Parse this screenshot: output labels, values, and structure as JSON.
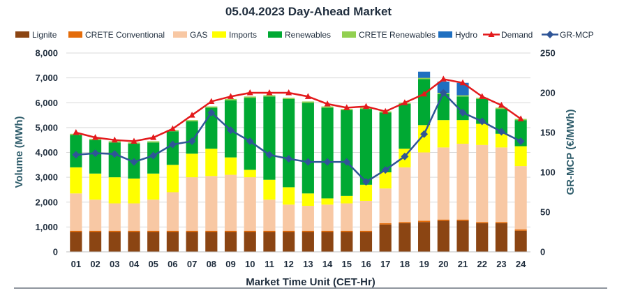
{
  "chart_data": {
    "type": "bar",
    "stacked": true,
    "title": "05.04.2023  Day-Ahead Market",
    "xlabel": "Market Time Unit (CET-Hr)",
    "ylabel": "Volume (MWh)",
    "y2label": "GR-MCP (€/MWh)",
    "ylim": [
      0,
      8000
    ],
    "y2lim": [
      0,
      250
    ],
    "yticks": [
      "0",
      "1,000",
      "2,000",
      "3,000",
      "4,000",
      "5,000",
      "6,000",
      "7,000",
      "8,000"
    ],
    "y2ticks": [
      "0",
      "50",
      "100",
      "150",
      "200",
      "250"
    ],
    "categories": [
      "01",
      "02",
      "03",
      "04",
      "05",
      "06",
      "07",
      "08",
      "09",
      "10",
      "11",
      "12",
      "13",
      "14",
      "15",
      "16",
      "17",
      "18",
      "19",
      "20",
      "21",
      "22",
      "23",
      "24"
    ],
    "series": [
      {
        "name": "Lignite",
        "kind": "bar",
        "color": "#8B4513",
        "values": [
          800,
          800,
          800,
          800,
          800,
          800,
          800,
          800,
          800,
          800,
          800,
          800,
          800,
          800,
          800,
          800,
          1100,
          1150,
          1200,
          1250,
          1250,
          1150,
          1150,
          850
        ]
      },
      {
        "name": "CRETE Conventional",
        "kind": "bar",
        "color": "#E46C0A",
        "values": [
          50,
          50,
          50,
          50,
          50,
          50,
          50,
          50,
          50,
          50,
          50,
          50,
          50,
          50,
          50,
          50,
          50,
          50,
          50,
          50,
          50,
          50,
          50,
          50
        ]
      },
      {
        "name": "GAS",
        "kind": "bar",
        "color": "#F8C8A4",
        "values": [
          1500,
          1250,
          1100,
          1100,
          1250,
          1550,
          2150,
          2200,
          2250,
          2150,
          1250,
          1050,
          1000,
          1050,
          1100,
          1200,
          1400,
          2200,
          2750,
          2900,
          3050,
          3100,
          3000,
          2550
        ]
      },
      {
        "name": "Imports",
        "kind": "bar",
        "color": "#FFFF00",
        "values": [
          1050,
          1050,
          1050,
          1000,
          1050,
          1100,
          950,
          1100,
          700,
          300,
          800,
          700,
          500,
          250,
          300,
          650,
          650,
          750,
          1100,
          1100,
          950,
          850,
          550,
          800
        ]
      },
      {
        "name": "Renewables",
        "kind": "bar",
        "color": "#00A933",
        "values": [
          1300,
          1350,
          1400,
          1400,
          1250,
          1350,
          1300,
          1650,
          2300,
          2900,
          3350,
          3550,
          3650,
          3650,
          3450,
          3050,
          2400,
          1800,
          1850,
          1050,
          950,
          1000,
          1000,
          1050
        ]
      },
      {
        "name": "CRETE Renewables",
        "kind": "bar",
        "color": "#92D050",
        "values": [
          50,
          50,
          50,
          50,
          50,
          50,
          50,
          50,
          50,
          50,
          50,
          50,
          50,
          50,
          50,
          50,
          50,
          50,
          50,
          50,
          50,
          50,
          50,
          50
        ]
      },
      {
        "name": "Hydro",
        "kind": "bar",
        "color": "#1F6FC0",
        "values": [
          0,
          0,
          0,
          0,
          0,
          0,
          0,
          0,
          0,
          0,
          0,
          0,
          0,
          0,
          0,
          0,
          0,
          0,
          250,
          450,
          500,
          0,
          0,
          0
        ]
      },
      {
        "name": "Demand",
        "kind": "line",
        "axis": "left",
        "color": "#E31A1C",
        "marker": "triangle",
        "values": [
          4800,
          4600,
          4500,
          4450,
          4600,
          4950,
          5500,
          6050,
          6250,
          6400,
          6400,
          6400,
          6250,
          5950,
          5800,
          5850,
          5650,
          6000,
          6350,
          6950,
          6800,
          6250,
          5900,
          5350
        ]
      },
      {
        "name": "GR-MCP",
        "kind": "line",
        "axis": "right",
        "color": "#2F5597",
        "marker": "diamond",
        "values": [
          122,
          124,
          123,
          113,
          121,
          135,
          139,
          175,
          153,
          139,
          122,
          117,
          113,
          113,
          113,
          88,
          103,
          120,
          148,
          200,
          175,
          164,
          151,
          139
        ]
      }
    ]
  }
}
